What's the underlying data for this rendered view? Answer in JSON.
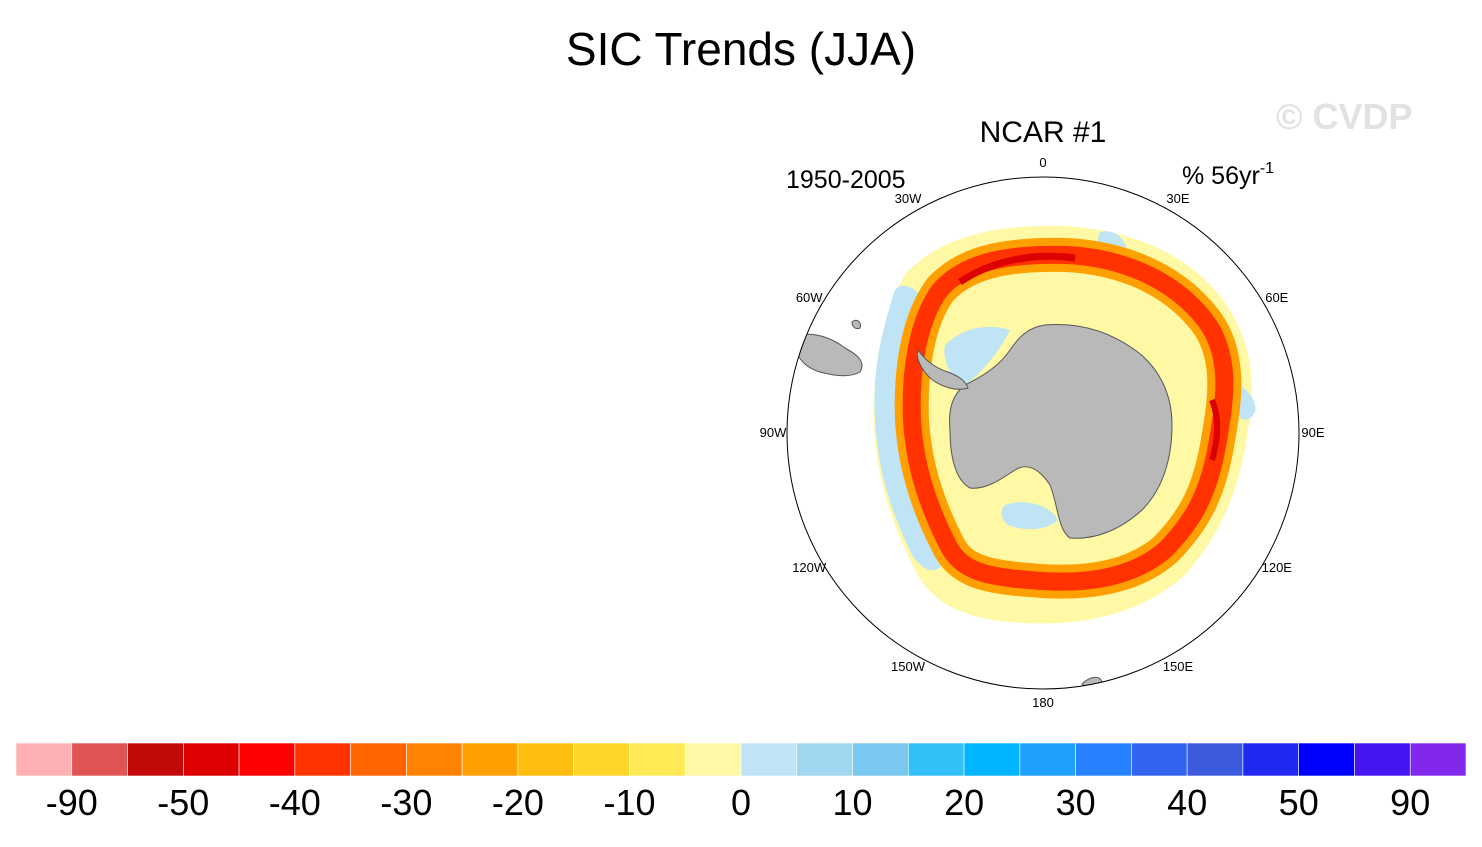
{
  "title": "SIC Trends (JJA)",
  "watermark": "© CVDP",
  "panel": {
    "title": "NCAR #1",
    "period": "1950-2005",
    "units_prefix": "% 56yr",
    "units_exponent": "-1",
    "projection": "south-polar-stereographic"
  },
  "longitude_labels": [
    "0",
    "30E",
    "60E",
    "90E",
    "120E",
    "150E",
    "180",
    "150W",
    "120W",
    "90W",
    "60W",
    "30W"
  ],
  "colorbar": {
    "colors": [
      "#ffb0b4",
      "#e05454",
      "#c20a0a",
      "#dc0000",
      "#ff0000",
      "#ff3200",
      "#ff6400",
      "#ff8200",
      "#ffa000",
      "#ffbe10",
      "#ffd52a",
      "#ffea55",
      "#fff8a5",
      "#bfe4f5",
      "#a0d6f0",
      "#78c8f0",
      "#32c0f8",
      "#00b4ff",
      "#1ea0ff",
      "#2882ff",
      "#3264f0",
      "#3c5ade",
      "#1e28f0",
      "#0000ff",
      "#4614f0",
      "#8228ec"
    ],
    "tick_labels": [
      "-90",
      "-50",
      "-40",
      "-30",
      "-20",
      "-10",
      "0",
      "10",
      "20",
      "30",
      "40",
      "50",
      "90"
    ]
  },
  "colors": {
    "land": "#b9b9b9",
    "land_outline": "#555555",
    "ring_fill": "#ffffff",
    "ring_outline": "#000000"
  }
}
